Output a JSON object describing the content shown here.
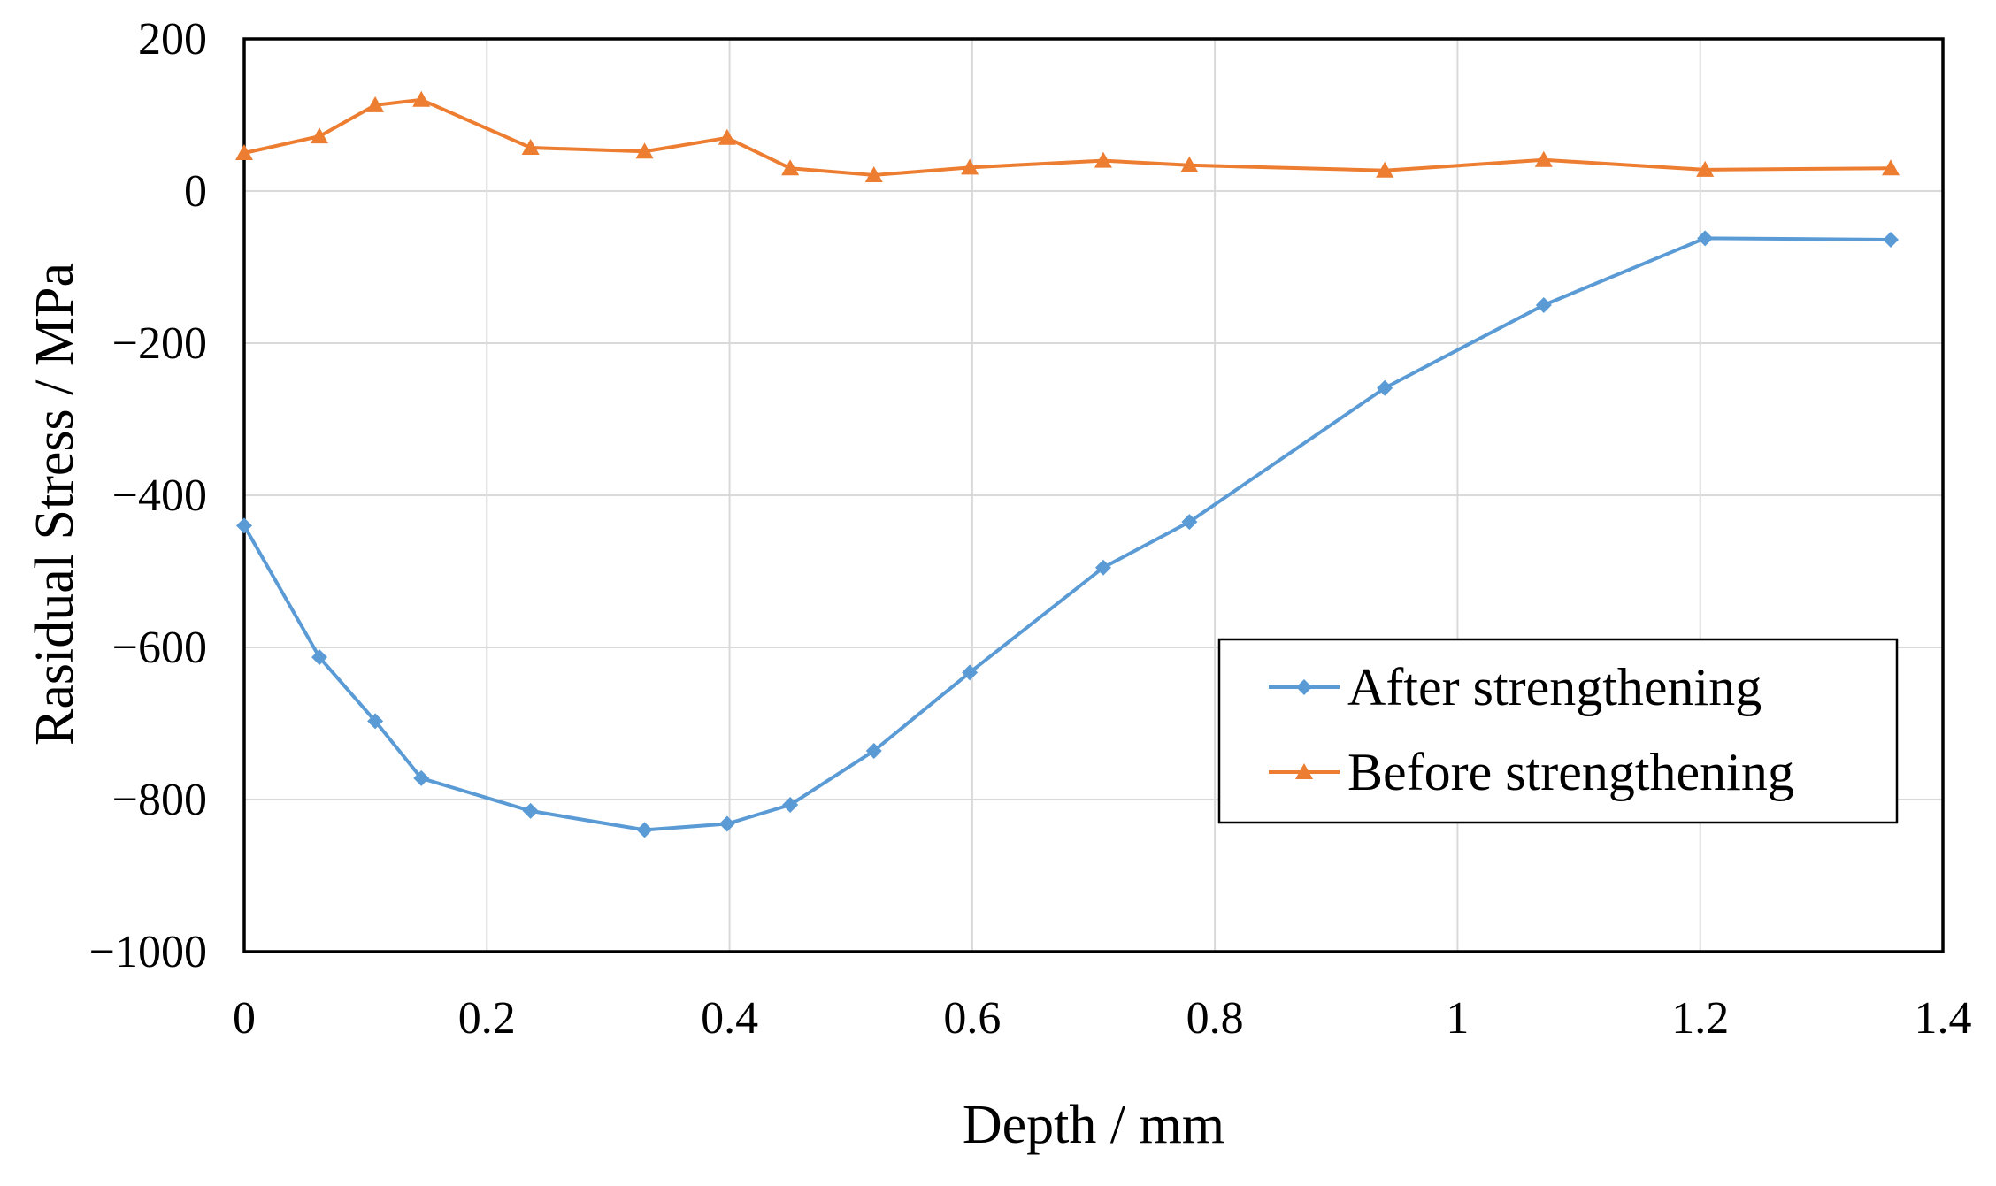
{
  "chart_data": {
    "type": "line",
    "title": "",
    "xlabel": "Depth / mm",
    "ylabel": "Rasidual Stress / MPa",
    "xlim": [
      0,
      1.4
    ],
    "ylim": [
      -1000,
      200
    ],
    "x_ticks": [
      0,
      0.2,
      0.4,
      0.6,
      0.8,
      1,
      1.2,
      1.4
    ],
    "x_tick_labels": [
      "0",
      "0.2",
      "0.4",
      "0.6",
      "0.8",
      "1",
      "1.2",
      "1.4"
    ],
    "y_ticks": [
      200,
      0,
      -200,
      -400,
      -600,
      -800,
      -1000
    ],
    "y_tick_labels": [
      "200",
      "0",
      "−200",
      "−400",
      "−600",
      "−800",
      "−1000"
    ],
    "grid": true,
    "legend_position": "lower-right",
    "series": [
      {
        "name": "After strengthening",
        "color": "#5b9bd5",
        "marker": "diamond",
        "x": [
          0,
          0.062,
          0.108,
          0.146,
          0.236,
          0.33,
          0.398,
          0.45,
          0.519,
          0.598,
          0.708,
          0.779,
          0.94,
          1.071,
          1.204,
          1.357
        ],
        "y": [
          -440,
          -613,
          -697,
          -772,
          -815,
          -840,
          -832,
          -807,
          -736,
          -633,
          -495,
          -435,
          -259,
          -150,
          -62,
          -64
        ]
      },
      {
        "name": "Before strengthening",
        "color": "#ed7d31",
        "marker": "triangle",
        "x": [
          0,
          0.062,
          0.108,
          0.146,
          0.236,
          0.33,
          0.398,
          0.45,
          0.519,
          0.598,
          0.708,
          0.779,
          0.94,
          1.071,
          1.204,
          1.357
        ],
        "y": [
          50,
          72,
          113,
          120,
          57,
          52,
          70,
          30,
          21,
          31,
          40,
          34,
          27,
          41,
          28,
          30
        ]
      }
    ]
  }
}
